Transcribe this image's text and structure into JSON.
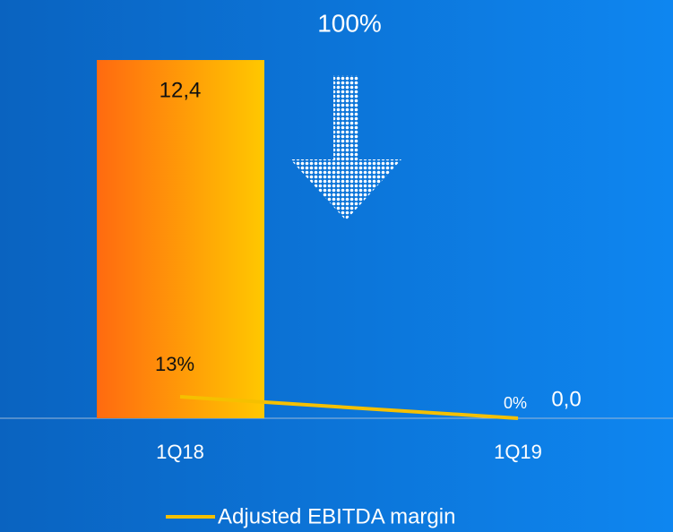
{
  "chart_data": {
    "type": "bar",
    "annotation": "100%",
    "categories": [
      "1Q18",
      "1Q19"
    ],
    "series": [
      {
        "type": "bar",
        "colors": [
          "#ff6a10",
          "#ffc800"
        ],
        "values": [
          12.4,
          0.0
        ],
        "value_labels": [
          "12,4",
          "0,0"
        ]
      },
      {
        "type": "line",
        "name": "Adjusted EBITDA margin",
        "color": "#f5c000",
        "axis": "y2",
        "values": [
          13,
          0
        ],
        "value_labels": [
          "13%",
          "0%"
        ]
      }
    ],
    "ylim": [
      0,
      14
    ],
    "y2lim": [
      0,
      245
    ]
  }
}
